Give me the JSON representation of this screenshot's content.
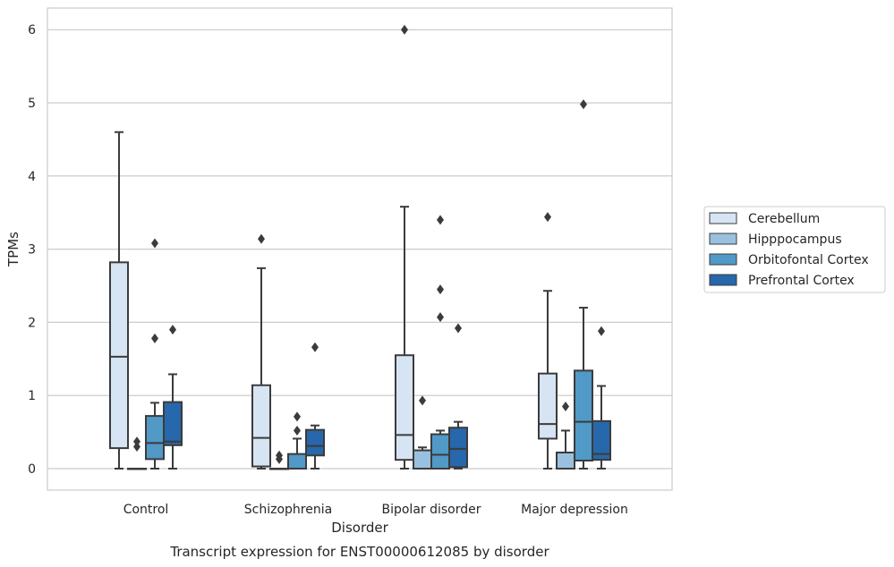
{
  "chart_data": {
    "type": "box",
    "title": "Transcript expression for ENST00000612085 by disorder",
    "xlabel": "Disorder",
    "ylabel": "TPMs",
    "ylim": [
      -0.3,
      6.3
    ],
    "yticks": [
      0,
      1,
      2,
      3,
      4,
      5,
      6
    ],
    "grid": "horizontal",
    "legend_position": "right",
    "categories": [
      "Control",
      "Schizophrenia",
      "Bipolar disorder",
      "Major depression"
    ],
    "series": [
      {
        "name": "Cerebellum",
        "color": "#d6e4f3",
        "boxes": [
          {
            "whislo": 0.0,
            "q1": 0.28,
            "med": 1.53,
            "q3": 2.82,
            "whishi": 4.6,
            "fliers": []
          },
          {
            "whislo": 0.0,
            "q1": 0.03,
            "med": 0.42,
            "q3": 1.14,
            "whishi": 2.74,
            "fliers": [
              3.14
            ]
          },
          {
            "whislo": 0.0,
            "q1": 0.12,
            "med": 0.46,
            "q3": 1.55,
            "whishi": 3.58,
            "fliers": [
              6.0
            ]
          },
          {
            "whislo": 0.0,
            "q1": 0.41,
            "med": 0.61,
            "q3": 1.3,
            "whishi": 2.43,
            "fliers": [
              3.44
            ]
          }
        ]
      },
      {
        "name": "Hipppocampus",
        "color": "#99c1df",
        "boxes": [
          {
            "whislo": 0.0,
            "q1": 0.0,
            "med": 0.0,
            "q3": 0.0,
            "whishi": 0.0,
            "fliers": [
              0.3,
              0.37
            ]
          },
          {
            "whislo": 0.0,
            "q1": 0.0,
            "med": 0.0,
            "q3": 0.0,
            "whishi": 0.0,
            "fliers": [
              0.13,
              0.18
            ]
          },
          {
            "whislo": 0.0,
            "q1": 0.0,
            "med": 0.0,
            "q3": 0.25,
            "whishi": 0.29,
            "fliers": [
              0.93
            ]
          },
          {
            "whislo": 0.0,
            "q1": 0.0,
            "med": 0.0,
            "q3": 0.22,
            "whishi": 0.52,
            "fliers": [
              0.85
            ]
          }
        ]
      },
      {
        "name": "Orbitofontal Cortex",
        "color": "#5199c7",
        "boxes": [
          {
            "whislo": 0.0,
            "q1": 0.13,
            "med": 0.35,
            "q3": 0.72,
            "whishi": 0.9,
            "fliers": [
              1.78,
              3.08
            ]
          },
          {
            "whislo": 0.0,
            "q1": 0.0,
            "med": 0.0,
            "q3": 0.2,
            "whishi": 0.41,
            "fliers": [
              0.52,
              0.71
            ]
          },
          {
            "whislo": 0.0,
            "q1": 0.0,
            "med": 0.19,
            "q3": 0.47,
            "whishi": 0.52,
            "fliers": [
              2.07,
              2.45,
              3.4
            ]
          },
          {
            "whislo": 0.0,
            "q1": 0.11,
            "med": 0.64,
            "q3": 1.34,
            "whishi": 2.2,
            "fliers": [
              4.98
            ]
          }
        ]
      },
      {
        "name": "Prefrontal Cortex",
        "color": "#2767ab",
        "boxes": [
          {
            "whislo": 0.0,
            "q1": 0.32,
            "med": 0.37,
            "q3": 0.91,
            "whishi": 1.29,
            "fliers": [
              1.9
            ]
          },
          {
            "whislo": 0.0,
            "q1": 0.18,
            "med": 0.31,
            "q3": 0.53,
            "whishi": 0.59,
            "fliers": [
              1.66
            ]
          },
          {
            "whislo": 0.0,
            "q1": 0.02,
            "med": 0.27,
            "q3": 0.56,
            "whishi": 0.64,
            "fliers": [
              1.92
            ]
          },
          {
            "whislo": 0.0,
            "q1": 0.12,
            "med": 0.2,
            "q3": 0.65,
            "whishi": 1.13,
            "fliers": [
              1.88
            ]
          }
        ]
      }
    ]
  }
}
